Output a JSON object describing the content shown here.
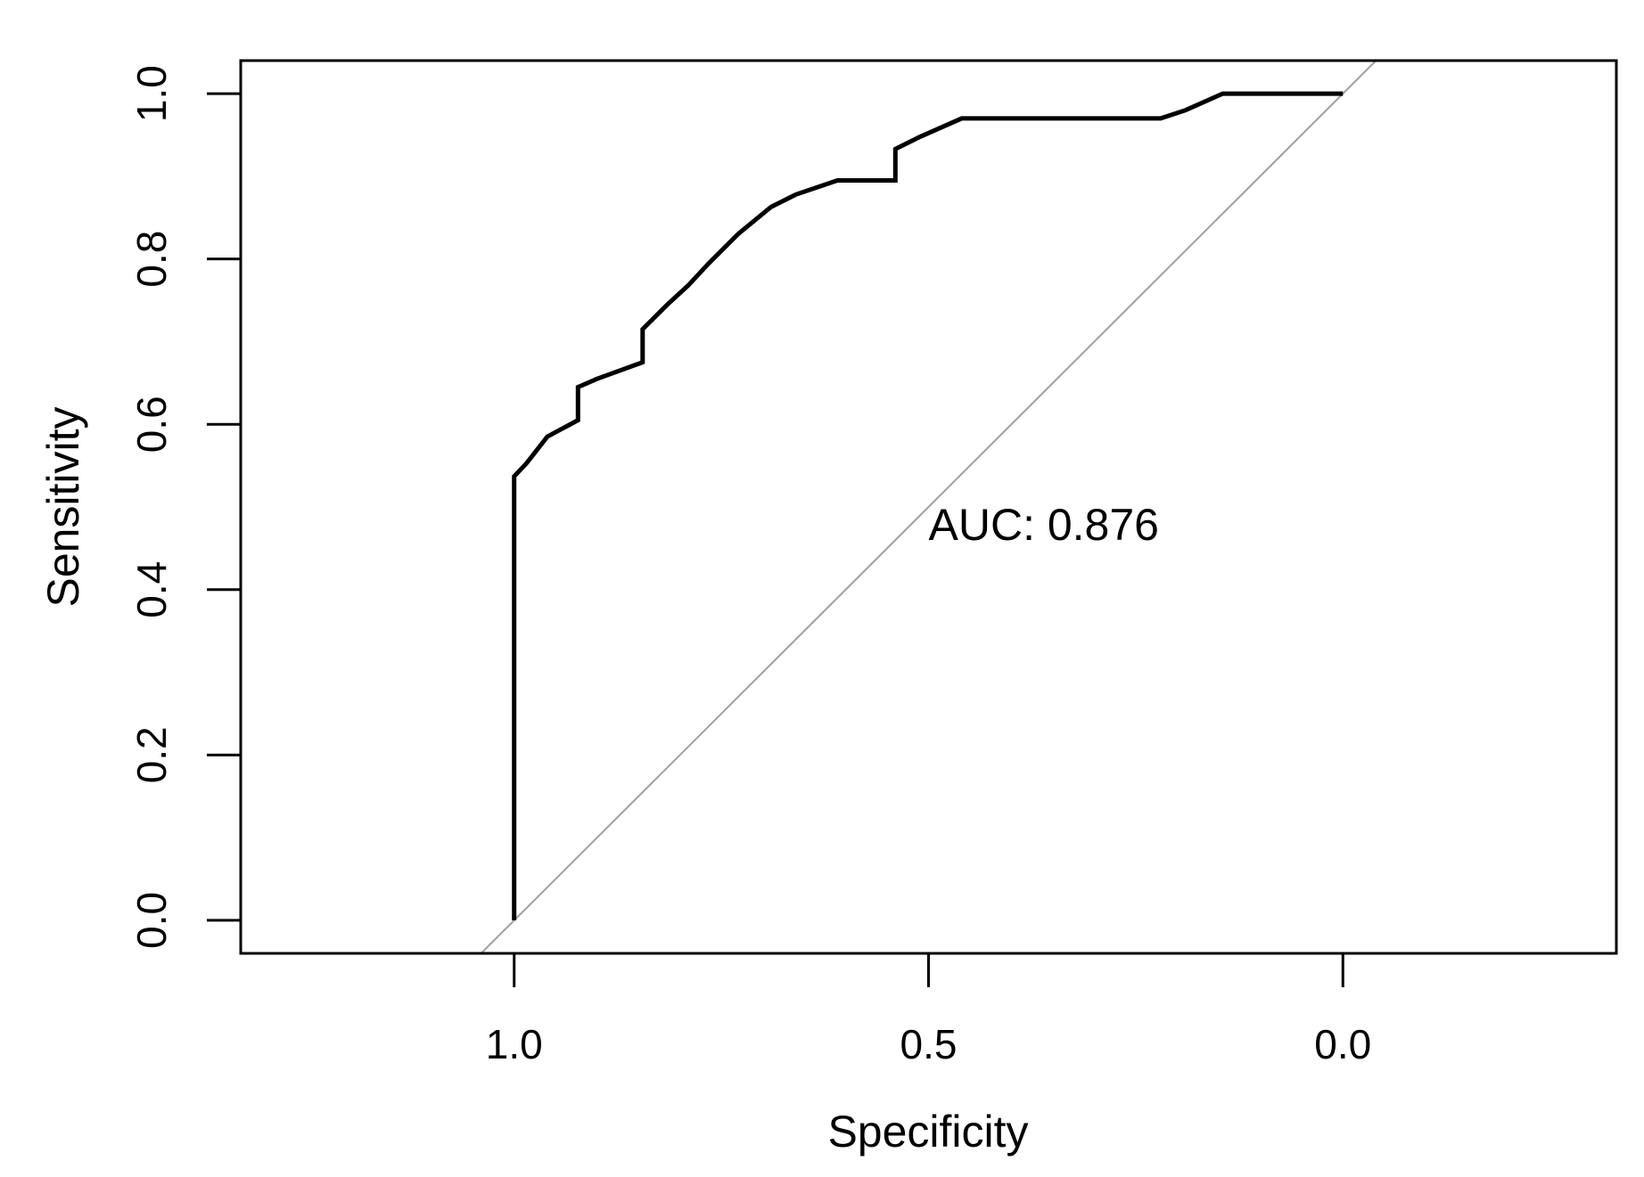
{
  "chart_data": {
    "type": "line",
    "title": "",
    "xlabel": "Specificity",
    "ylabel": "Sensitivity",
    "x_reversed": true,
    "xlim": [
      1.33,
      -0.33
    ],
    "ylim": [
      -0.04,
      1.04
    ],
    "xticks": [
      {
        "value": 1.0,
        "label": "1.0"
      },
      {
        "value": 0.5,
        "label": "0.5"
      },
      {
        "value": 0.0,
        "label": "0.0"
      }
    ],
    "yticks": [
      {
        "value": 0.0,
        "label": "0.0"
      },
      {
        "value": 0.2,
        "label": "0.2"
      },
      {
        "value": 0.4,
        "label": "0.4"
      },
      {
        "value": 0.6,
        "label": "0.6"
      },
      {
        "value": 0.8,
        "label": "0.8"
      },
      {
        "value": 1.0,
        "label": "1.0"
      }
    ],
    "grid": false,
    "annotation": {
      "text": "AUC: 0.876",
      "x": 0.5,
      "y": 0.46
    },
    "reference_line": {
      "from": [
        1.04,
        -0.04
      ],
      "to": [
        -0.04,
        1.04
      ],
      "color": "#a0a0a0"
    },
    "series": [
      {
        "color": "#000000",
        "points": [
          [
            1.0,
            0.0
          ],
          [
            1.0,
            0.537
          ],
          [
            0.985,
            0.553
          ],
          [
            0.96,
            0.585
          ],
          [
            0.923,
            0.605
          ],
          [
            0.923,
            0.645
          ],
          [
            0.9,
            0.655
          ],
          [
            0.845,
            0.675
          ],
          [
            0.845,
            0.715
          ],
          [
            0.815,
            0.745
          ],
          [
            0.79,
            0.768
          ],
          [
            0.765,
            0.795
          ],
          [
            0.73,
            0.83
          ],
          [
            0.69,
            0.863
          ],
          [
            0.66,
            0.878
          ],
          [
            0.61,
            0.895
          ],
          [
            0.54,
            0.895
          ],
          [
            0.54,
            0.933
          ],
          [
            0.51,
            0.948
          ],
          [
            0.46,
            0.97
          ],
          [
            0.22,
            0.97
          ],
          [
            0.19,
            0.98
          ],
          [
            0.145,
            1.0
          ],
          [
            0.0,
            1.0
          ]
        ]
      }
    ]
  }
}
